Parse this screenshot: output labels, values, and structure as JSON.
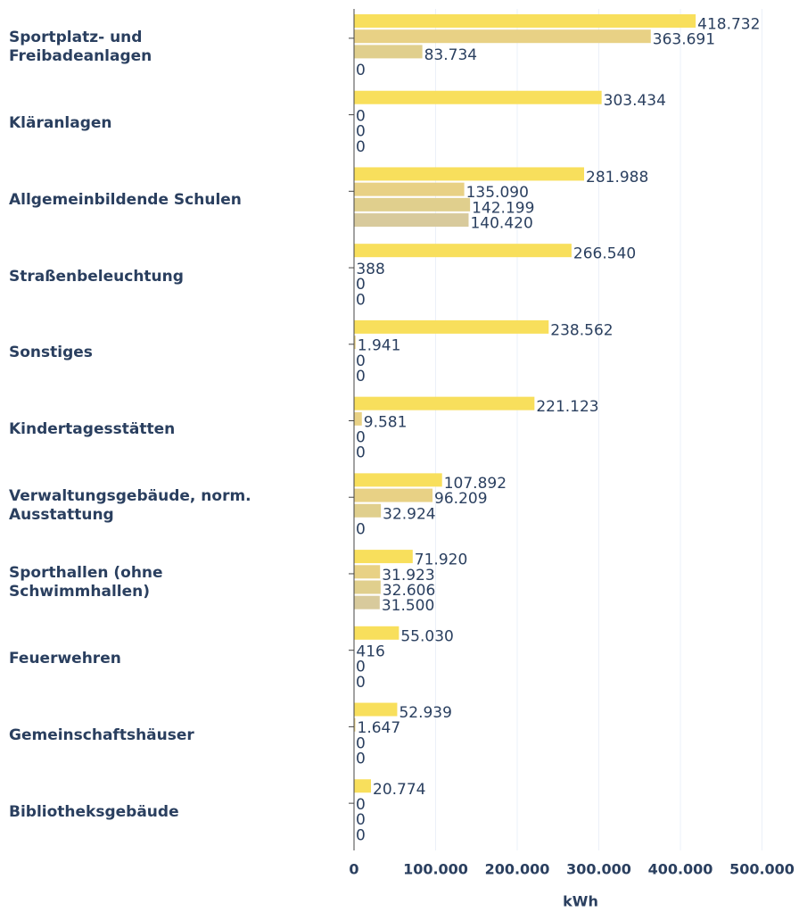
{
  "chart_data": {
    "type": "hbar",
    "categories": [
      "Sportplatz- und Freibadeanlagen",
      "Kläranlagen",
      "Allgemeinbildende Schulen",
      "Straßenbeleuchtung",
      "Sonstiges",
      "Kindertagesstätten",
      "Verwaltungsgebäude, norm. Ausstattung",
      "Sporthallen (ohne Schwimmhallen)",
      "Feuerwehren",
      "Gemeinschaftshäuser",
      "Bibliotheksgebäude"
    ],
    "series": [
      {
        "color": "#f8df5c",
        "values": [
          418732,
          303434,
          281988,
          266540,
          238562,
          221123,
          107892,
          71920,
          55030,
          52939,
          20774
        ],
        "value_labels": [
          "418.732",
          "303.434",
          "281.988",
          "266.540",
          "238.562",
          "221.123",
          "107.892",
          "71.920",
          "55.030",
          "52.939",
          "20.774"
        ]
      },
      {
        "color": "#e8d185",
        "values": [
          363691,
          0,
          135090,
          388,
          1941,
          9581,
          96209,
          31923,
          416,
          1647,
          0
        ],
        "value_labels": [
          "363.691",
          "0",
          "135.090",
          "388",
          "1.941",
          "9.581",
          "96.209",
          "31.923",
          "416",
          "1.647",
          "0"
        ]
      },
      {
        "color": "#e0cf8d",
        "values": [
          83734,
          0,
          142199,
          0,
          0,
          0,
          32924,
          32606,
          0,
          0,
          0
        ],
        "value_labels": [
          "83.734",
          "0",
          "142.199",
          "0",
          "0",
          "0",
          "32.924",
          "32.606",
          "0",
          "0",
          "0"
        ]
      },
      {
        "color": "#d8ca9c",
        "values": [
          0,
          0,
          140420,
          0,
          0,
          0,
          0,
          31500,
          0,
          0,
          0
        ],
        "value_labels": [
          "0",
          "0",
          "140.420",
          "0",
          "0",
          "0",
          "0",
          "31.500",
          "0",
          "0",
          "0"
        ]
      }
    ],
    "xlabel": "kWh",
    "xlim": [
      0,
      545000
    ],
    "xticks": [
      0,
      {
        "value": 100000,
        "label": "100.000"
      },
      {
        "value": 200000,
        "label": "200.000"
      },
      {
        "value": 300000,
        "label": "300.000"
      },
      {
        "value": 400000,
        "label": "400.000"
      },
      {
        "value": 500000,
        "label": "500.000"
      }
    ],
    "grid": true
  }
}
